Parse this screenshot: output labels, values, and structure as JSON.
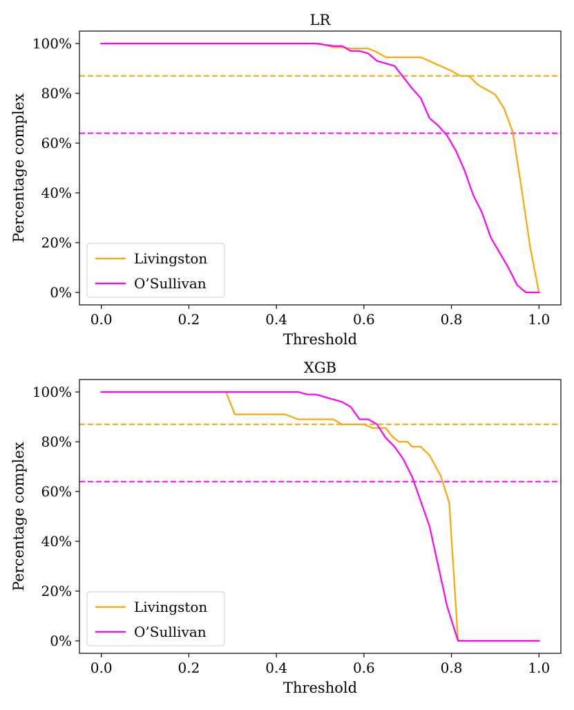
{
  "colors": {
    "livingston": "#ffa500",
    "osullivan": "#ff00ff",
    "axis": "#000000",
    "legend_border": "#cccccc"
  },
  "chart_data": [
    {
      "type": "line",
      "title": "LR",
      "xlabel": "Threshold",
      "ylabel": "Percentage complex",
      "xlim": [
        -0.05,
        1.05
      ],
      "ylim": [
        -5,
        105
      ],
      "xticks": [
        0.0,
        0.2,
        0.4,
        0.6,
        0.8,
        1.0
      ],
      "xtick_labels": [
        "0.0",
        "0.2",
        "0.4",
        "0.6",
        "0.8",
        "1.0"
      ],
      "yticks": [
        0,
        20,
        40,
        60,
        80,
        100
      ],
      "ytick_labels": [
        "0%",
        "20%",
        "40%",
        "60%",
        "80%",
        "100%"
      ],
      "legend_position": "lower-left",
      "hlines": [
        {
          "name": "Livingston baseline",
          "y": 87,
          "color": "#ffa500",
          "style": "dashed"
        },
        {
          "name": "O'Sullivan baseline",
          "y": 64,
          "color": "#ff00ff",
          "style": "dashed"
        }
      ],
      "series": [
        {
          "name": "Livingston",
          "label": "Livingston",
          "color": "#ffa500",
          "x": [
            0.0,
            0.5,
            0.51,
            0.53,
            0.55,
            0.57,
            0.6,
            0.61,
            0.63,
            0.65,
            0.7,
            0.73,
            0.8,
            0.82,
            0.84,
            0.86,
            0.9,
            0.92,
            0.94,
            0.96,
            0.98,
            1.0
          ],
          "y": [
            100,
            100,
            99.5,
            98.5,
            98.5,
            98,
            98,
            98,
            96.5,
            94.5,
            94.5,
            94.5,
            89,
            87,
            87,
            83.5,
            79.5,
            74,
            64.5,
            42,
            18,
            0
          ]
        },
        {
          "name": "O'Sullivan",
          "label": "O’Sullivan",
          "color": "#ff00ff",
          "x": [
            0.0,
            0.49,
            0.51,
            0.53,
            0.55,
            0.57,
            0.59,
            0.61,
            0.63,
            0.65,
            0.67,
            0.69,
            0.71,
            0.73,
            0.75,
            0.77,
            0.79,
            0.81,
            0.83,
            0.85,
            0.87,
            0.89,
            0.91,
            0.93,
            0.95,
            0.97,
            0.98,
            0.99,
            1.0
          ],
          "y": [
            100,
            100,
            99.5,
            99,
            99,
            97,
            97,
            96,
            93,
            92,
            91,
            86.5,
            82,
            78,
            70,
            67,
            63,
            57,
            49,
            39,
            32,
            22,
            16,
            10,
            3,
            0,
            0,
            0,
            0
          ]
        }
      ]
    },
    {
      "type": "line",
      "title": "XGB",
      "xlabel": "Threshold",
      "ylabel": "Percentage complex",
      "xlim": [
        -0.05,
        1.05
      ],
      "ylim": [
        -5,
        105
      ],
      "xticks": [
        0.0,
        0.2,
        0.4,
        0.6,
        0.8,
        1.0
      ],
      "xtick_labels": [
        "0.0",
        "0.2",
        "0.4",
        "0.6",
        "0.8",
        "1.0"
      ],
      "yticks": [
        0,
        20,
        40,
        60,
        80,
        100
      ],
      "ytick_labels": [
        "0%",
        "20%",
        "40%",
        "60%",
        "80%",
        "100%"
      ],
      "legend_position": "lower-left",
      "hlines": [
        {
          "name": "Livingston baseline",
          "y": 87,
          "color": "#ffa500",
          "style": "dashed"
        },
        {
          "name": "O'Sullivan baseline",
          "y": 64,
          "color": "#ff00ff",
          "style": "dashed"
        }
      ],
      "series": [
        {
          "name": "Livingston",
          "label": "Livingston",
          "color": "#ffa500",
          "x": [
            0.0,
            0.285,
            0.305,
            0.33,
            0.42,
            0.45,
            0.48,
            0.53,
            0.55,
            0.6,
            0.62,
            0.65,
            0.665,
            0.68,
            0.7,
            0.71,
            0.73,
            0.75,
            0.775,
            0.795,
            0.815,
            0.83,
            1.0
          ],
          "y": [
            100,
            100,
            91,
            91,
            91,
            89,
            89,
            89,
            87,
            87,
            85.5,
            85.5,
            82,
            80,
            80,
            78,
            78,
            74.5,
            66.5,
            55.5,
            0,
            0,
            0
          ]
        },
        {
          "name": "O'Sullivan",
          "label": "O’Sullivan",
          "color": "#ff00ff",
          "x": [
            0.0,
            0.45,
            0.47,
            0.49,
            0.51,
            0.53,
            0.55,
            0.57,
            0.59,
            0.61,
            0.63,
            0.65,
            0.67,
            0.69,
            0.71,
            0.73,
            0.75,
            0.77,
            0.79,
            0.815,
            1.0
          ],
          "y": [
            100,
            100,
            99,
            99,
            98,
            97,
            96,
            94,
            89,
            89,
            87,
            81.5,
            78,
            73,
            66,
            56,
            46,
            30,
            14,
            0,
            0
          ]
        }
      ]
    }
  ]
}
